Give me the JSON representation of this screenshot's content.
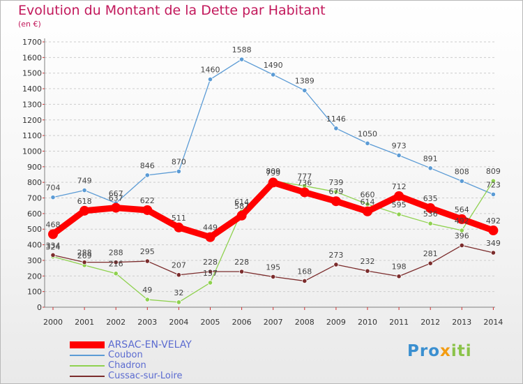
{
  "title": "Evolution du Montant de la Dette par Habitant",
  "subtitle": "(en €)",
  "brand": {
    "part1": "Pro",
    "part2": "x",
    "part3": "iti"
  },
  "colors": {
    "title": "#c2185b",
    "axis": "#7f7f7f",
    "grid": "#cccccc",
    "tick_marks": "#d32f2f"
  },
  "chart_data": {
    "type": "line",
    "x": [
      "2000",
      "2001",
      "2002",
      "2003",
      "2004",
      "2005",
      "2006",
      "2007",
      "2008",
      "2009",
      "2010",
      "2011",
      "2012",
      "2013",
      "2014"
    ],
    "ylim": [
      0,
      1700
    ],
    "yticks": [
      0,
      100,
      200,
      300,
      400,
      500,
      600,
      700,
      800,
      900,
      1000,
      1100,
      1200,
      1300,
      1400,
      1500,
      1600,
      1700
    ],
    "grid": "horizontal dashed",
    "legend_position": "bottom-left",
    "series": [
      {
        "name": "ARSAC-EN-VELAY",
        "color": "#ff0000",
        "emphasis": true,
        "values": [
          468,
          618,
          637,
          622,
          511,
          449,
          587,
          799,
          736,
          679,
          614,
          712,
          635,
          564,
          492
        ]
      },
      {
        "name": "Coubon",
        "color": "#5b9bd5",
        "emphasis": false,
        "values": [
          704,
          749,
          667,
          846,
          870,
          1460,
          1588,
          1490,
          1389,
          1146,
          1050,
          973,
          891,
          808,
          723
        ]
      },
      {
        "name": "Chadron",
        "color": "#8fd14f",
        "emphasis": false,
        "values": [
          324,
          269,
          216,
          49,
          32,
          157,
          614,
          809,
          777,
          739,
          660,
          595,
          536,
          492,
          809
        ]
      },
      {
        "name": "Cussac-sur-Loire",
        "color": "#7b2c2c",
        "emphasis": false,
        "values": [
          334,
          288,
          288,
          295,
          207,
          228,
          228,
          195,
          168,
          273,
          232,
          198,
          281,
          396,
          349
        ]
      }
    ]
  }
}
